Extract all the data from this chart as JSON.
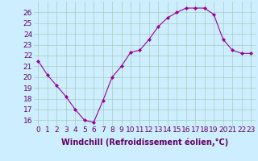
{
  "x": [
    0,
    1,
    2,
    3,
    4,
    5,
    6,
    7,
    8,
    9,
    10,
    11,
    12,
    13,
    14,
    15,
    16,
    17,
    18,
    19,
    20,
    21,
    22,
    23
  ],
  "y": [
    21.5,
    20.2,
    19.2,
    18.2,
    17.0,
    16.0,
    15.8,
    17.8,
    20.0,
    21.0,
    22.3,
    22.5,
    23.5,
    24.7,
    25.5,
    26.0,
    26.4,
    26.4,
    26.4,
    25.8,
    23.5,
    22.5,
    22.2,
    22.2
  ],
  "line_color": "#990099",
  "marker": "D",
  "marker_size": 2,
  "bg_color": "#cceeff",
  "grid_color": "#aaccbb",
  "xlabel": "Windchill (Refroidissement éolien,°C)",
  "xlabel_color": "#660066",
  "tick_label_color": "#660066",
  "ylim": [
    15.5,
    27.0
  ],
  "xlim": [
    -0.5,
    23.5
  ],
  "yticks": [
    16,
    17,
    18,
    19,
    20,
    21,
    22,
    23,
    24,
    25,
    26
  ],
  "xticks": [
    0,
    1,
    2,
    3,
    4,
    5,
    6,
    7,
    8,
    9,
    10,
    11,
    12,
    13,
    14,
    15,
    16,
    17,
    18,
    19,
    20,
    21,
    22,
    23
  ],
  "xtick_labels": [
    "0",
    "1",
    "2",
    "3",
    "4",
    "5",
    "6",
    "7",
    "8",
    "9",
    "10",
    "11",
    "12",
    "13",
    "14",
    "15",
    "16",
    "17",
    "18",
    "19",
    "20",
    "21",
    "22",
    "23"
  ],
  "ytick_labels": [
    "16",
    "17",
    "18",
    "19",
    "20",
    "21",
    "22",
    "23",
    "24",
    "25",
    "26"
  ],
  "font_size": 6.5,
  "xlabel_fontsize": 7
}
